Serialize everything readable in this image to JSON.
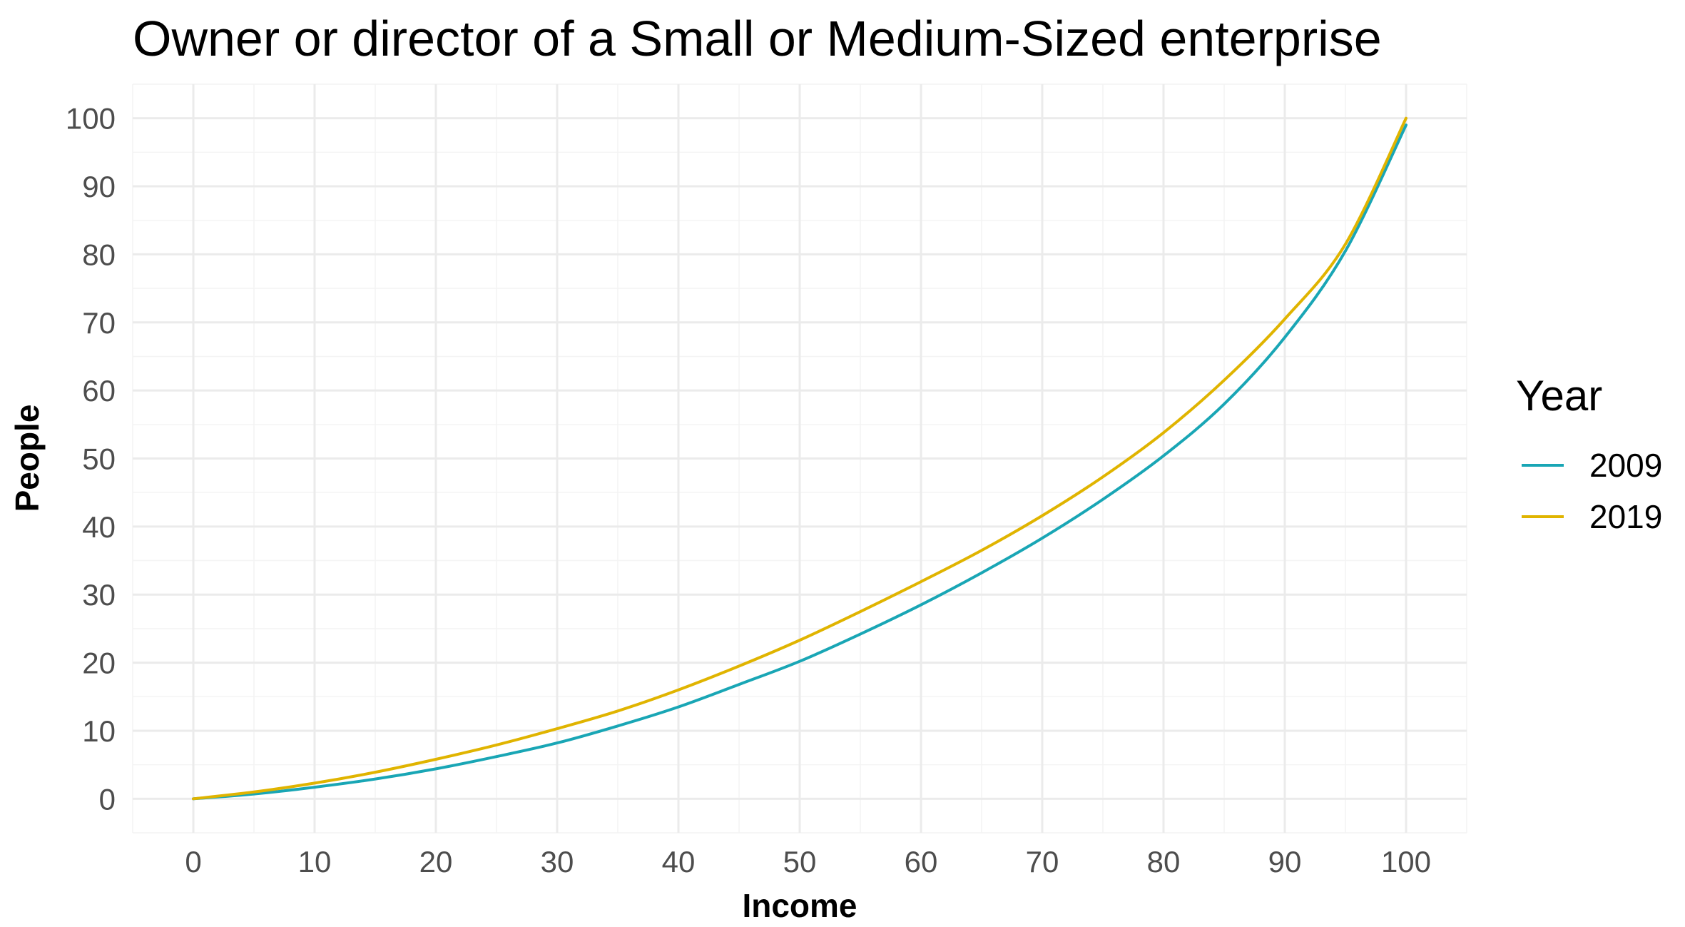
{
  "chart_data": {
    "type": "line",
    "title": "Owner or director of a Small or Medium-Sized enterprise",
    "xlabel": "Income",
    "ylabel": "People",
    "xlim": [
      -5,
      105
    ],
    "ylim": [
      -5,
      105
    ],
    "xticks": [
      0,
      10,
      20,
      30,
      40,
      50,
      60,
      70,
      80,
      90,
      100
    ],
    "yticks": [
      0,
      10,
      20,
      30,
      40,
      50,
      60,
      70,
      80,
      90,
      100
    ],
    "grid": true,
    "legend": {
      "title": "Year",
      "position": "right"
    },
    "series": [
      {
        "name": "2009",
        "color": "#19a6b5",
        "x": [
          0,
          5,
          10,
          15,
          20,
          25,
          30,
          35,
          40,
          45,
          50,
          55,
          60,
          65,
          70,
          75,
          80,
          85,
          90,
          95,
          100
        ],
        "y": [
          0,
          0.7,
          1.7,
          2.9,
          4.4,
          6.2,
          8.2,
          10.7,
          13.5,
          16.8,
          20.2,
          24.2,
          28.5,
          33.2,
          38.3,
          44.0,
          50.4,
          58.0,
          67.8,
          80.5,
          99.0
        ]
      },
      {
        "name": "2019",
        "color": "#e0b400",
        "x": [
          0,
          5,
          10,
          15,
          20,
          25,
          30,
          35,
          40,
          45,
          50,
          55,
          60,
          65,
          70,
          75,
          80,
          85,
          90,
          95,
          100
        ],
        "y": [
          0,
          1.0,
          2.3,
          3.9,
          5.8,
          7.9,
          10.3,
          12.9,
          16.0,
          19.5,
          23.3,
          27.5,
          31.9,
          36.5,
          41.6,
          47.3,
          53.8,
          61.5,
          70.5,
          81.5,
          100.0
        ]
      }
    ]
  }
}
